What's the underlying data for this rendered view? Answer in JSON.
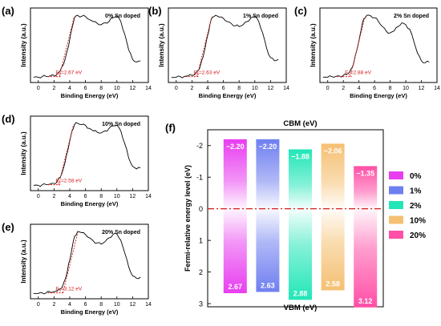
{
  "chart_data": [
    {
      "type": "line",
      "panel_label": "(a)",
      "annotation": "0% Sn doped",
      "vbm_label": {
        "sub": "v",
        "value": "=2.67 eV"
      },
      "vbm": 2.67,
      "xlabel": "Binding Energy (eV)",
      "ylabel": "Intensity (a.u.)",
      "xlim": [
        -1,
        14
      ],
      "xticks": [
        0,
        2,
        4,
        6,
        8,
        10,
        12,
        14
      ],
      "x": [
        -0.6,
        0,
        0.5,
        1,
        1.5,
        2,
        2.4,
        2.8,
        3.1,
        3.4,
        3.7,
        4.0,
        4.3,
        4.6,
        5.0,
        5.5,
        6.0,
        6.5,
        7.0,
        7.5,
        8.0,
        8.5,
        9.0,
        9.5,
        10.0,
        10.5,
        11.0,
        11.5,
        12.0,
        12.5,
        13.0
      ],
      "values": [
        0.02,
        0.02,
        0.03,
        0.03,
        0.04,
        0.05,
        0.07,
        0.12,
        0.2,
        0.3,
        0.45,
        0.62,
        0.8,
        0.96,
        1.0,
        0.98,
        0.98,
        0.93,
        0.9,
        0.87,
        0.85,
        0.88,
        0.9,
        0.96,
        0.99,
        0.9,
        0.7,
        0.45,
        0.3,
        0.26,
        0.28
      ]
    },
    {
      "type": "line",
      "panel_label": "(b)",
      "annotation": "1% Sn doped",
      "vbm_label": {
        "sub": "v",
        "value": "=2.63 eV"
      },
      "vbm": 2.63,
      "xlabel": "Binding Energy (eV)",
      "ylabel": "Intensity (a.u.)",
      "xlim": [
        -1,
        14
      ],
      "xticks": [
        0,
        2,
        4,
        6,
        8,
        10,
        12,
        14
      ],
      "x": [
        -0.6,
        0,
        0.5,
        1,
        1.5,
        2,
        2.4,
        2.8,
        3.1,
        3.4,
        3.7,
        4.0,
        4.3,
        4.6,
        5.0,
        5.5,
        6.0,
        6.5,
        7.0,
        7.5,
        8.0,
        8.5,
        9.0,
        9.5,
        10.0,
        10.5,
        11.0,
        11.5,
        12.0,
        12.5,
        13.0
      ],
      "values": [
        0.02,
        0.02,
        0.03,
        0.03,
        0.04,
        0.05,
        0.07,
        0.13,
        0.22,
        0.33,
        0.5,
        0.68,
        0.86,
        0.97,
        1.0,
        0.97,
        0.95,
        0.9,
        0.87,
        0.83,
        0.82,
        0.85,
        0.9,
        0.96,
        0.98,
        0.9,
        0.72,
        0.48,
        0.33,
        0.28,
        0.3
      ]
    },
    {
      "type": "line",
      "panel_label": "(c)",
      "annotation": "2% Sn doped",
      "vbm_label": {
        "sub": "v",
        "value": "=2.88 eV"
      },
      "vbm": 2.88,
      "xlabel": "Binding Energy (eV)",
      "ylabel": "Intensity (a.u.)",
      "xlim": [
        -1,
        14
      ],
      "xticks": [
        0,
        2,
        4,
        6,
        8,
        10,
        12,
        14
      ],
      "x": [
        -0.6,
        0,
        0.5,
        1,
        1.5,
        2,
        2.4,
        2.8,
        3.1,
        3.4,
        3.7,
        4.0,
        4.3,
        4.6,
        5.0,
        5.5,
        6.0,
        6.5,
        7.0,
        7.5,
        8.0,
        8.5,
        9.0,
        9.5,
        10.0,
        10.5,
        11.0,
        11.5,
        12.0,
        12.5,
        13.0
      ],
      "values": [
        0.02,
        0.02,
        0.03,
        0.03,
        0.04,
        0.05,
        0.06,
        0.1,
        0.17,
        0.28,
        0.43,
        0.6,
        0.78,
        0.94,
        1.0,
        0.99,
        0.96,
        0.9,
        0.82,
        0.75,
        0.72,
        0.75,
        0.82,
        0.88,
        0.85,
        0.78,
        0.6,
        0.4,
        0.28,
        0.25,
        0.26
      ]
    },
    {
      "type": "line",
      "panel_label": "(d)",
      "annotation": "10% Sn doped",
      "vbm_label": {
        "sub": "v",
        "value": "=2.58 eV"
      },
      "vbm": 2.58,
      "xlabel": "Binding Energy (eV)",
      "ylabel": "Intensity (a.u.)",
      "xlim": [
        -1,
        14
      ],
      "xticks": [
        0,
        2,
        4,
        6,
        8,
        10,
        12,
        14
      ],
      "x": [
        -0.6,
        0,
        0.5,
        1,
        1.5,
        2,
        2.4,
        2.8,
        3.1,
        3.4,
        3.7,
        4.0,
        4.3,
        4.6,
        5.0,
        5.5,
        6.0,
        6.5,
        7.0,
        7.5,
        8.0,
        8.5,
        9.0,
        9.5,
        10.0,
        10.5,
        11.0,
        11.5,
        12.0,
        12.5,
        13.0
      ],
      "values": [
        0.02,
        0.02,
        0.03,
        0.03,
        0.04,
        0.05,
        0.08,
        0.15,
        0.25,
        0.38,
        0.55,
        0.72,
        0.88,
        0.98,
        1.0,
        0.98,
        0.97,
        0.92,
        0.88,
        0.86,
        0.85,
        0.88,
        0.92,
        0.96,
        0.97,
        0.88,
        0.68,
        0.45,
        0.32,
        0.28,
        0.3
      ]
    },
    {
      "type": "line",
      "panel_label": "(e)",
      "annotation": "20% Sn doped",
      "vbm_label": {
        "sub": "v",
        "value": "=3.12 eV"
      },
      "vbm": 3.12,
      "xlabel": "Binding Energy (eV)",
      "ylabel": "Intensity (a.u.)",
      "xlim": [
        -1,
        14
      ],
      "xticks": [
        0,
        2,
        4,
        6,
        8,
        10,
        12,
        14
      ],
      "x": [
        -0.6,
        0,
        0.5,
        1,
        1.5,
        2,
        2.4,
        2.8,
        3.1,
        3.4,
        3.7,
        4.0,
        4.3,
        4.6,
        5.0,
        5.5,
        6.0,
        6.5,
        7.0,
        7.5,
        8.0,
        8.5,
        9.0,
        9.5,
        10.0,
        10.5,
        11.0,
        11.5,
        12.0,
        12.5,
        13.0
      ],
      "values": [
        0.02,
        0.02,
        0.03,
        0.03,
        0.04,
        0.05,
        0.06,
        0.09,
        0.14,
        0.24,
        0.38,
        0.55,
        0.74,
        0.92,
        1.0,
        0.98,
        0.95,
        0.9,
        0.85,
        0.82,
        0.8,
        0.84,
        0.9,
        0.95,
        0.96,
        0.86,
        0.66,
        0.44,
        0.3,
        0.26,
        0.28
      ]
    },
    {
      "type": "bar",
      "panel_label": "(f)",
      "title_top": "CBM (eV)",
      "title_bottom": "VBM (eV)",
      "ylabel": "Fermi-relative energy level (eV)",
      "ylim": [
        -2.5,
        3.1
      ],
      "yticks": [
        -2,
        -1,
        0,
        1,
        2,
        3
      ],
      "categories": [
        "0%",
        "1%",
        "2%",
        "10%",
        "20%"
      ],
      "cbm": [
        -2.2,
        -2.2,
        -1.88,
        -2.06,
        -1.35
      ],
      "vbm": [
        2.67,
        2.63,
        2.88,
        2.58,
        3.12
      ],
      "cbm_labels": [
        "−2.20",
        "−2.20",
        "−1.88",
        "−2.06",
        "−1.35"
      ],
      "vbm_labels": [
        "2.67",
        "2.63",
        "2.88",
        "2.58",
        "3.12"
      ],
      "colors": [
        "#e83ef0",
        "#6f7ff0",
        "#22e6b8",
        "#f5c072",
        "#ff4fa6"
      ],
      "legend": [
        "0%",
        "1%",
        "2%",
        "10%",
        "20%"
      ],
      "legend_position": "right",
      "zero_line_color": "#d81b1b"
    }
  ]
}
